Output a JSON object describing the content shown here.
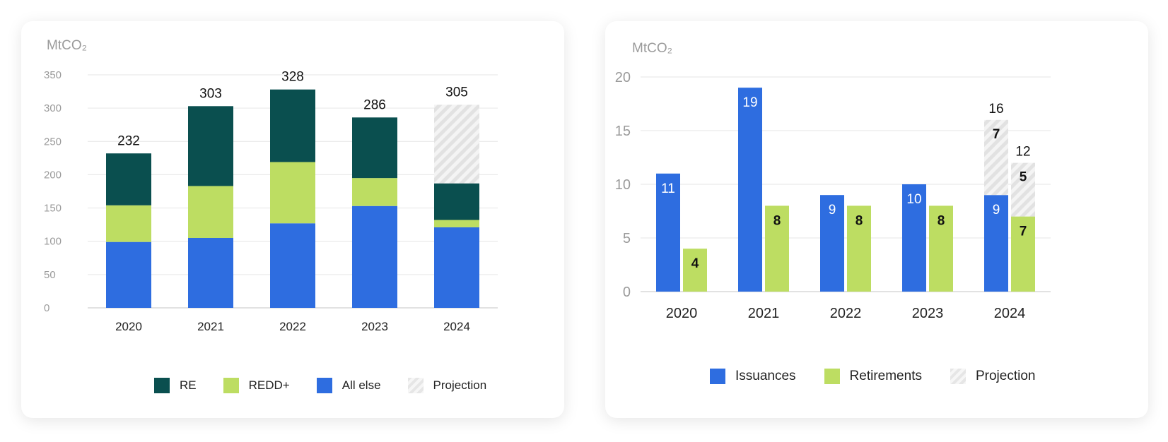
{
  "chart_data": [
    {
      "type": "bar",
      "stacked": true,
      "ylabel": "MtCO₂",
      "ylim": [
        0,
        350
      ],
      "yticks": [
        0,
        50,
        100,
        150,
        200,
        250,
        300,
        350
      ],
      "grid": true,
      "legend_position": "bottom",
      "categories": [
        "2020",
        "2021",
        "2022",
        "2023",
        "2024"
      ],
      "series": [
        {
          "name": "All else",
          "color": "#2e6de0",
          "values": [
            99,
            105,
            127,
            153,
            121
          ]
        },
        {
          "name": "REDD+",
          "color": "#bddd62",
          "values": [
            55,
            78,
            92,
            42,
            11
          ]
        },
        {
          "name": "RE",
          "color": "#0a4f4f",
          "values": [
            78,
            120,
            109,
            91,
            55
          ]
        },
        {
          "name": "Projection",
          "pattern": "hatch",
          "values": [
            0,
            0,
            0,
            0,
            118
          ]
        }
      ],
      "totals": [
        232,
        303,
        328,
        286,
        305
      ],
      "legend_order": [
        "RE",
        "REDD+",
        "All else",
        "Projection"
      ]
    },
    {
      "type": "bar",
      "grouped": true,
      "ylabel": "MtCO₂",
      "ylim": [
        0,
        20
      ],
      "yticks": [
        0,
        5,
        10,
        15,
        20
      ],
      "grid": true,
      "legend_position": "bottom",
      "categories": [
        "2020",
        "2021",
        "2022",
        "2023",
        "2024"
      ],
      "series": [
        {
          "name": "Issuances",
          "color": "#2e6de0",
          "values": [
            11,
            19,
            9,
            10,
            9
          ],
          "labels": [
            "11",
            "19",
            "9",
            "10",
            "9"
          ]
        },
        {
          "name": "Retirements",
          "color": "#bddd62",
          "values": [
            4,
            8,
            8,
            8,
            7
          ],
          "labels": [
            "4",
            "8",
            "8",
            "8",
            "7"
          ]
        },
        {
          "name": "Projection",
          "pattern": "hatch",
          "issuances_projection": [
            0,
            0,
            0,
            0,
            7
          ],
          "retirements_projection": [
            0,
            0,
            0,
            0,
            5
          ],
          "labels": [
            "7",
            "5"
          ]
        }
      ],
      "projection_totals": {
        "issuances": "16",
        "retirements": "12"
      },
      "legend_order": [
        "Issuances",
        "Retirements",
        "Projection"
      ]
    }
  ],
  "left_legend": {
    "re": "RE",
    "redd": "REDD+",
    "all_else": "All else",
    "projection": "Projection"
  },
  "right_legend": {
    "issuances": "Issuances",
    "retirements": "Retirements",
    "projection": "Projection"
  },
  "left_unit": "MtCO₂",
  "right_unit": "MtCO₂"
}
